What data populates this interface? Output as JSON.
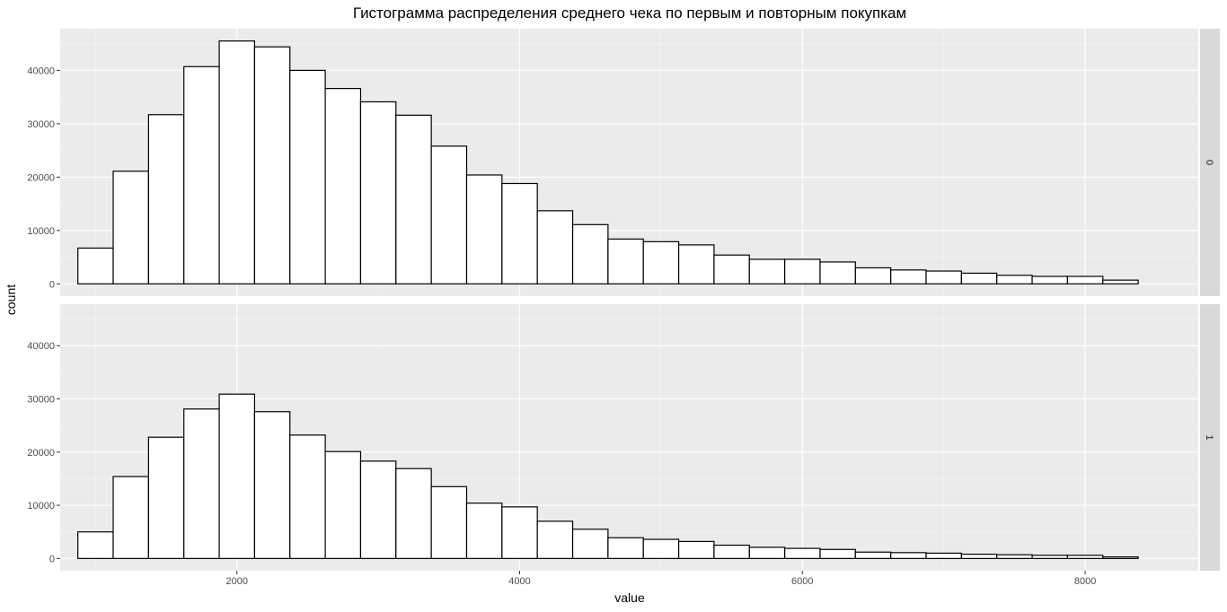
{
  "chart_data": {
    "type": "bar",
    "title": "Гистограмма распределения среднего чека по первым и повторным покупкам",
    "xlabel": "value",
    "ylabel": "count",
    "xlim": [
      750,
      8800
    ],
    "ylim": [
      -2300,
      47800
    ],
    "x_ticks": [
      2000,
      4000,
      6000,
      8000
    ],
    "y_ticks": [
      0,
      10000,
      20000,
      30000,
      40000
    ],
    "grid": true,
    "bin_edges": [
      875,
      1125,
      1375,
      1625,
      1875,
      2125,
      2375,
      2625,
      2875,
      3125,
      3375,
      3625,
      3875,
      4125,
      4375,
      4625,
      4875,
      5125,
      5375,
      5625,
      5875,
      6125,
      6375,
      6625,
      6875,
      7125,
      7375,
      7625,
      7875,
      8125,
      8375
    ],
    "facets": [
      {
        "label": "0",
        "values": [
          6700,
          21100,
          31700,
          40700,
          45500,
          44400,
          40000,
          36600,
          34100,
          31600,
          25800,
          20400,
          18800,
          13700,
          11100,
          8400,
          7900,
          7300,
          5400,
          4600,
          4600,
          4100,
          3000,
          2600,
          2400,
          2000,
          1600,
          1400,
          1400,
          700
        ]
      },
      {
        "label": "1",
        "values": [
          5000,
          15400,
          22800,
          28100,
          30900,
          27600,
          23200,
          20100,
          18300,
          16900,
          13500,
          10400,
          9700,
          7000,
          5500,
          3900,
          3600,
          3200,
          2500,
          2100,
          1900,
          1700,
          1200,
          1100,
          1000,
          800,
          700,
          600,
          600,
          300
        ]
      }
    ]
  }
}
